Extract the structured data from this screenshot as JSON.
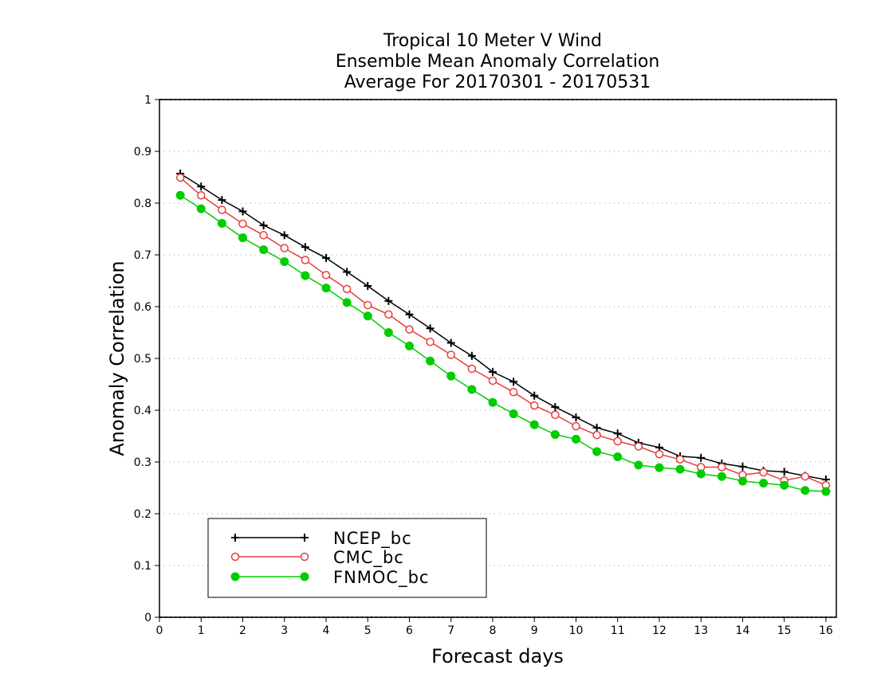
{
  "chart_data": {
    "type": "line",
    "title_lines": [
      "Tropical 10 Meter V Wind",
      "Ensemble Mean Anomaly Correlation",
      "Average For 20170301 - 20170531"
    ],
    "xlabel": "Forecast days",
    "ylabel": "Anomaly Correlation",
    "xlim": [
      0,
      16.25
    ],
    "ylim": [
      0,
      1
    ],
    "xticks": [
      0,
      1,
      2,
      3,
      4,
      5,
      6,
      7,
      8,
      9,
      10,
      11,
      12,
      13,
      14,
      15,
      16
    ],
    "yticks": [
      0,
      0.1,
      0.2,
      0.3,
      0.4,
      0.5,
      0.6,
      0.7,
      0.8,
      0.9,
      1
    ],
    "ytick_labels": [
      "0",
      "0.1",
      "0.2",
      "0.3",
      "0.4",
      "0.5",
      "0.6",
      "0.7",
      "0.8",
      "0.9",
      "1"
    ],
    "grid": "horizontal-dotted",
    "legend_position": "lower-left",
    "x": [
      0.5,
      1,
      1.5,
      2,
      2.5,
      3,
      3.5,
      4,
      4.5,
      5,
      5.5,
      6,
      6.5,
      7,
      7.5,
      8,
      8.5,
      9,
      9.5,
      10,
      10.5,
      11,
      11.5,
      12,
      12.5,
      13,
      13.5,
      14,
      14.5,
      15,
      15.5,
      16
    ],
    "series": [
      {
        "name": "NCEP_bc",
        "color": "#000000",
        "marker": "plus",
        "values": [
          0.857,
          0.832,
          0.806,
          0.784,
          0.757,
          0.738,
          0.715,
          0.694,
          0.667,
          0.64,
          0.611,
          0.585,
          0.558,
          0.53,
          0.505,
          0.474,
          0.455,
          0.428,
          0.406,
          0.386,
          0.366,
          0.355,
          0.337,
          0.328,
          0.311,
          0.308,
          0.297,
          0.291,
          0.283,
          0.281,
          0.273,
          0.266
        ]
      },
      {
        "name": "CMC_bc",
        "color": "#e83c3c",
        "marker": "open-circle",
        "values": [
          0.849,
          0.815,
          0.787,
          0.76,
          0.738,
          0.713,
          0.69,
          0.661,
          0.634,
          0.603,
          0.585,
          0.556,
          0.532,
          0.507,
          0.48,
          0.457,
          0.435,
          0.409,
          0.391,
          0.369,
          0.352,
          0.34,
          0.33,
          0.315,
          0.305,
          0.29,
          0.29,
          0.275,
          0.28,
          0.264,
          0.272,
          0.255
        ]
      },
      {
        "name": "FNMOC_bc",
        "color": "#00cc00",
        "marker": "filled-circle",
        "values": [
          0.815,
          0.789,
          0.761,
          0.733,
          0.71,
          0.687,
          0.66,
          0.636,
          0.608,
          0.582,
          0.55,
          0.524,
          0.495,
          0.466,
          0.44,
          0.415,
          0.393,
          0.372,
          0.353,
          0.344,
          0.32,
          0.31,
          0.294,
          0.289,
          0.286,
          0.277,
          0.272,
          0.263,
          0.259,
          0.255,
          0.245,
          0.243
        ]
      }
    ]
  }
}
